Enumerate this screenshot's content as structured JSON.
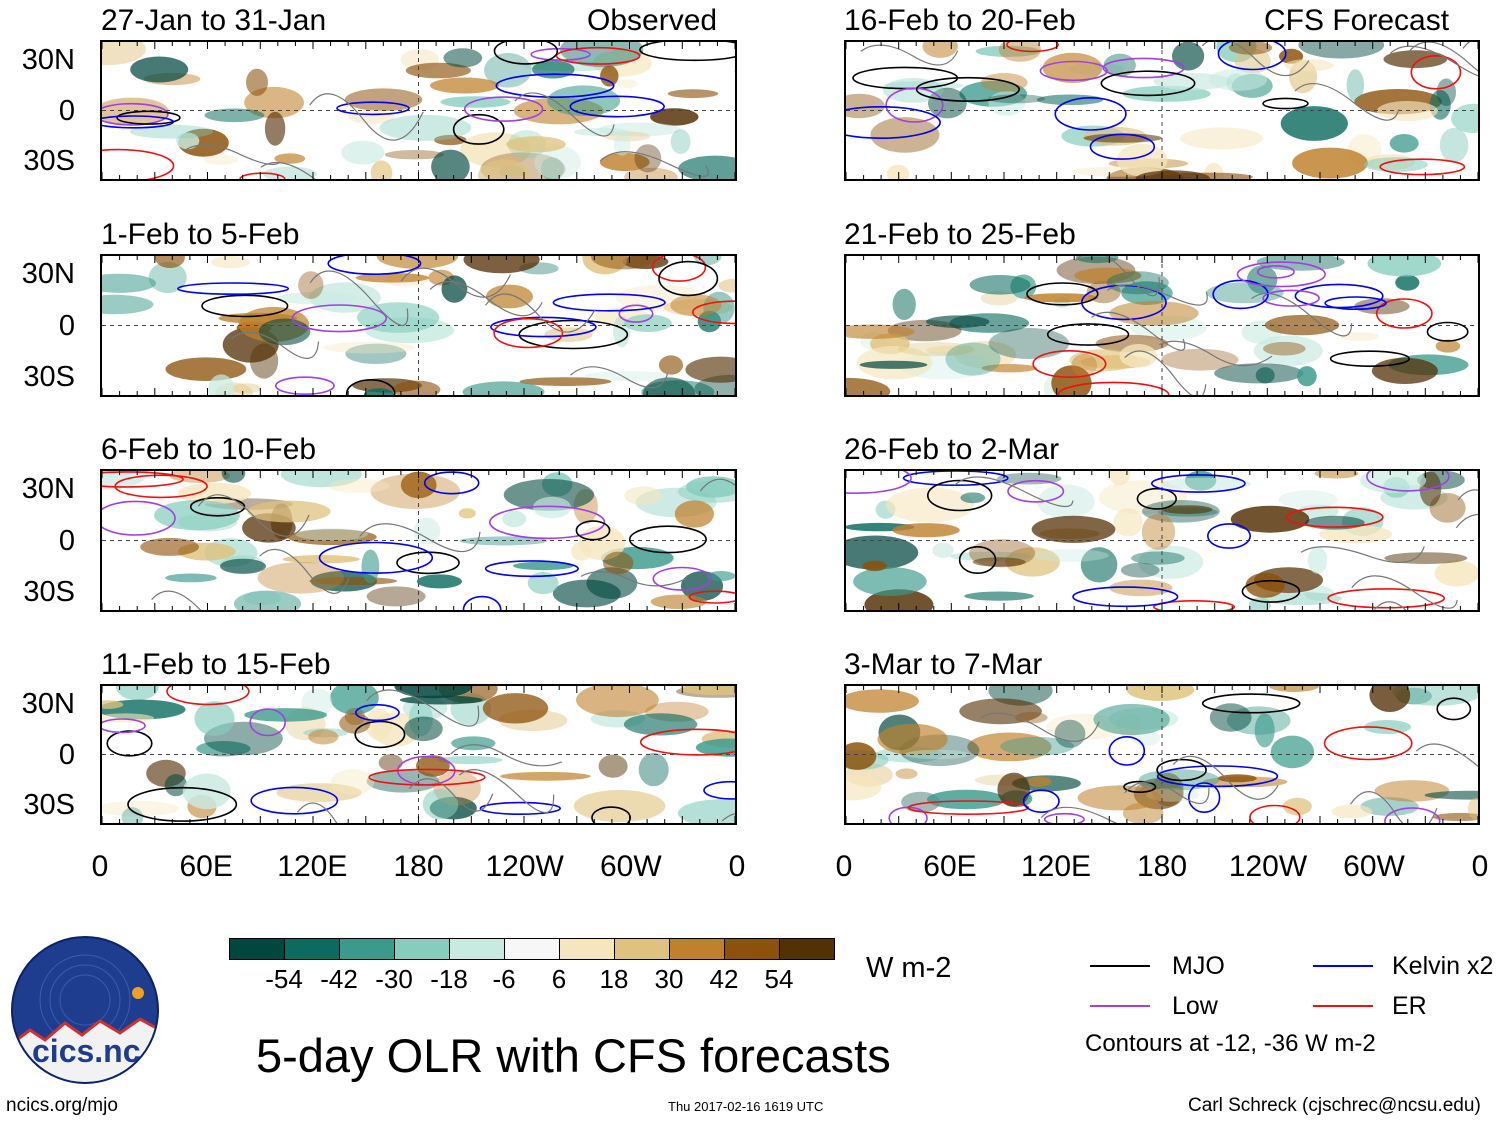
{
  "headers": {
    "left": "Observed",
    "right": "CFS Forecast"
  },
  "panels_left": [
    {
      "title": "27-Jan to 31-Jan"
    },
    {
      "title": "1-Feb to 5-Feb"
    },
    {
      "title": "6-Feb to 10-Feb"
    },
    {
      "title": "11-Feb to 15-Feb"
    }
  ],
  "panels_right": [
    {
      "title": "16-Feb to 20-Feb"
    },
    {
      "title": "21-Feb to 25-Feb"
    },
    {
      "title": "26-Feb to 2-Mar"
    },
    {
      "title": "3-Mar to 7-Mar"
    }
  ],
  "lat_labels": [
    "30N",
    "0",
    "30S"
  ],
  "lon_labels": [
    "0",
    "60E",
    "120E",
    "180",
    "120W",
    "60W",
    "0"
  ],
  "colorbar": {
    "units": "W m-2",
    "tick_labels": [
      "-54",
      "-42",
      "-30",
      "-18",
      "-6",
      "6",
      "18",
      "30",
      "42",
      "54"
    ],
    "colors": [
      "#00473e",
      "#0b6b5f",
      "#3a9a8b",
      "#86cdbe",
      "#c8eae1",
      "#f7f7f7",
      "#f5e6be",
      "#dfc27d",
      "#bf812d",
      "#8c510a",
      "#543005"
    ]
  },
  "legend": {
    "items": [
      {
        "label": "MJO",
        "color": "#000000"
      },
      {
        "label": "Kelvin x2",
        "color": "#0000ee"
      },
      {
        "label": "Low",
        "color": "#a040e0"
      },
      {
        "label": "ER",
        "color": "#ee1111"
      }
    ],
    "note": "Contours at -12, -36 W m-2"
  },
  "main_title": "5-day OLR with CFS forecasts",
  "logo_text": "cics.nc",
  "footer": {
    "url": "ncics.org/mjo",
    "timestamp": "Thu 2017-02-16 1619 UTC",
    "author": "Carl Schreck (cjschrec@ncsu.edu)"
  }
}
